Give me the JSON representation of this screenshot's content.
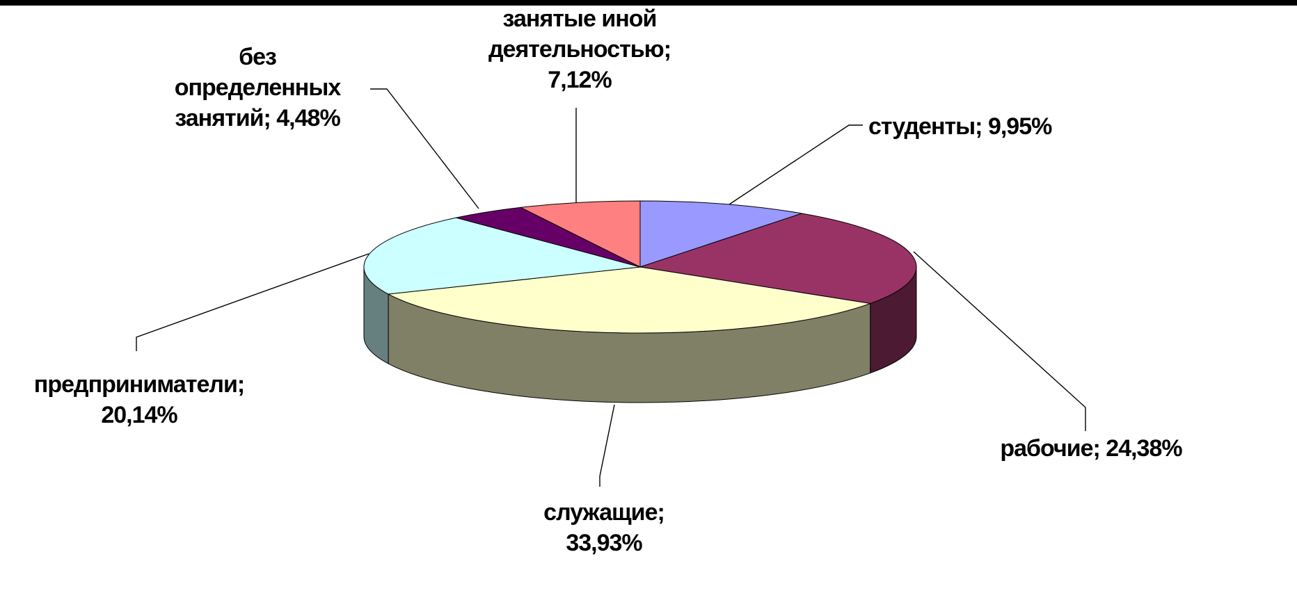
{
  "chart_data": {
    "type": "pie",
    "variant": "3d",
    "title": "",
    "slices": [
      {
        "category": "студенты",
        "value": 9.95,
        "value_label": "9,95%",
        "color": "#9999ff",
        "side_color": "#6b6bb3"
      },
      {
        "category": "рабочие",
        "value": 24.38,
        "value_label": "24,38%",
        "color": "#993366",
        "side_color": "#4d1a33"
      },
      {
        "category": "служащие",
        "value": 33.93,
        "value_label": "33,93%",
        "color": "#ffffcc",
        "side_color": "#808066"
      },
      {
        "category": "предприниматели",
        "value": 20.14,
        "value_label": "20,14%",
        "color": "#ccffff",
        "side_color": "#668080"
      },
      {
        "category": "без определенных занятий",
        "value": 4.48,
        "value_label": "4,48%",
        "color": "#660066",
        "side_color": "#330033"
      },
      {
        "category": "занятые иной деятельностью",
        "value": 7.12,
        "value_label": "7,12%",
        "color": "#ff8080",
        "side_color": "#804040"
      }
    ],
    "labels": [
      {
        "slice": "студенты",
        "lines": [
          "студенты; 9,95%"
        ]
      },
      {
        "slice": "рабочие",
        "lines": [
          "рабочие; 24,38%"
        ]
      },
      {
        "slice": "служащие",
        "lines": [
          "служащие;",
          "33,93%"
        ]
      },
      {
        "slice": "предприниматели",
        "lines": [
          "предприниматели;",
          "20,14%"
        ]
      },
      {
        "slice": "без определенных занятий",
        "lines": [
          "без",
          "определенных",
          "занятий; 4,48%"
        ]
      },
      {
        "slice": "занятые иной деятельностью",
        "lines": [
          "занятые иной",
          "деятельностью;",
          "7,12%"
        ]
      }
    ],
    "start": "top, clockwise",
    "legend": "none"
  }
}
